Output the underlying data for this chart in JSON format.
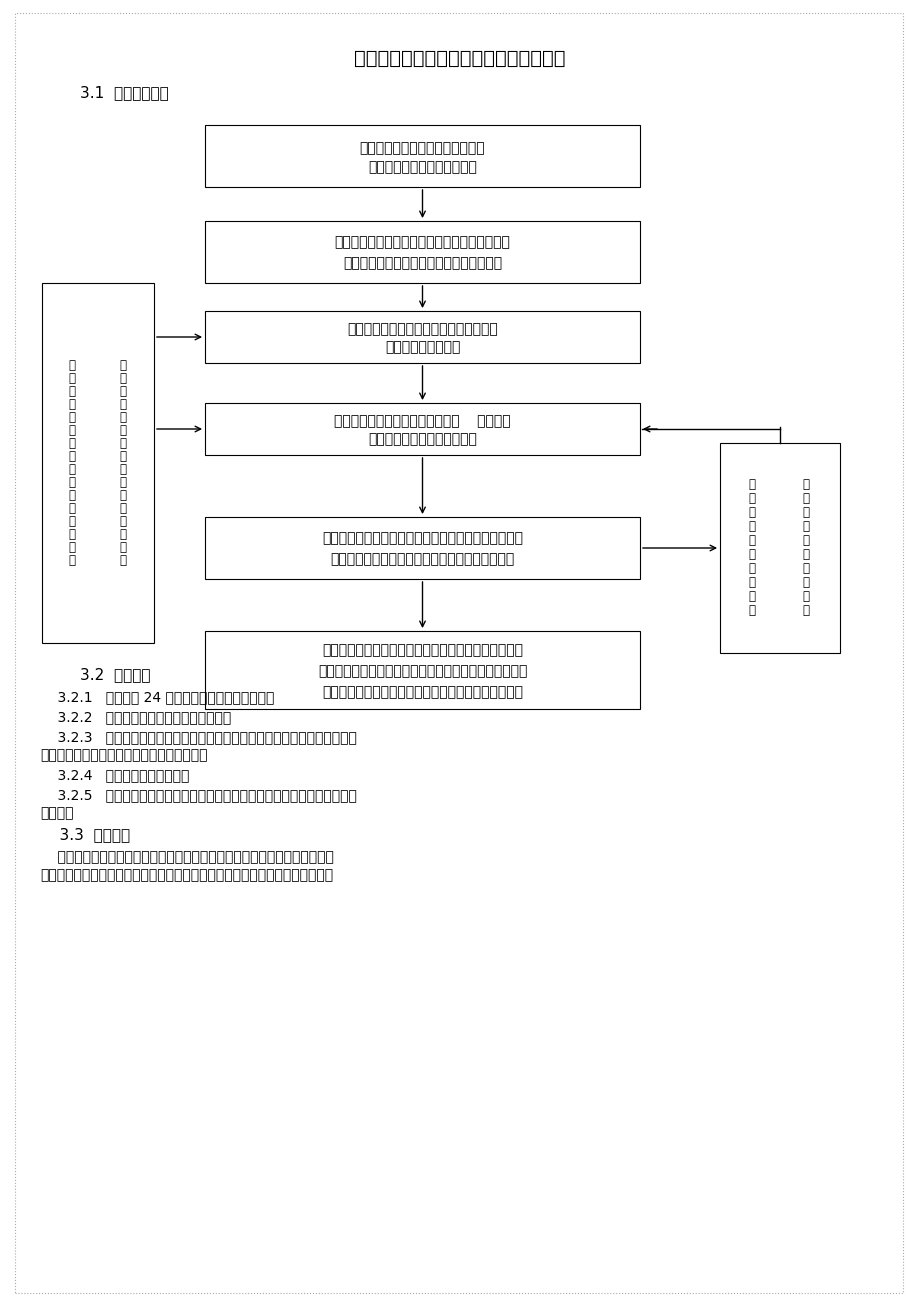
{
  "title": "第三章瓦斯防治监理工作控制要点、目标",
  "section_31": "3.1  超前地质手段",
  "box1_line1": "督促施工单位编制隧道含瓦斯探测",
  "box1_line2": "的超前地质预报的措施于方案",
  "box2_line1": "监理单位审批施工单位上报含瓦斯探测的超前地",
  "box2_line2": "质预报的实施方案，提出可行性建议与方案",
  "box3_line1": "督促施工单位在隧道洞内按规范规定的平",
  "box3_line2": "率定期进行地质探测",
  "box4_line1": "及时记录并掌握第一手原始资料，    编制超前",
  "box4_line2": "地质预报，分析地质预报结果",
  "box5_line1": "监理单位认真审核施工单位上报的超前地质预报结果，",
  "box5_line2": "分析隧道围岩是否稳定及地质预报是否与设计相符",
  "box6_line1": "超前地质预报若与设计不符应及时通知有关单位变更处",
  "box6_line2": "理，若地质预报存在瓦斯、溶洞、突水、突泥等风险时应",
  "box6_line3": "督促施工单位做好应急预案，确保隧道施工与运营安全",
  "left_col1": [
    "监",
    "理",
    "单",
    "位",
    "现",
    "场",
    "进",
    "行",
    "见",
    "证",
    "旁",
    "站",
    "超",
    "前",
    "地",
    "质"
  ],
  "left_col2": [
    "预",
    "报",
    "及",
    "时",
    "收",
    "集",
    "整",
    "理",
    "现",
    "场",
    "原",
    "始",
    "记",
    "录",
    "资",
    "料"
  ],
  "right_col1": [
    "发",
    "现",
    "预",
    "报",
    "实",
    "施",
    "不",
    "规",
    "范",
    "，"
  ],
  "right_col2": [
    "督",
    "促",
    "施",
    "工",
    "单",
    "位",
    "重",
    "新",
    "实",
    "施"
  ],
  "section_32": "3.2  洞口管理",
  "item_321": "    3.2.1   洞口必须 24 小时设置专职安全值班人员。",
  "item_322": "    3.2.2   所有进出洞人员必须在洞口登记。",
  "item_323_1": "    3.2.3   人员进洞前严禁饮酒，进洞时严禁穿化纤衣服，必须带好安全帽，携",
  "item_323_2": "带自救器，禁止携带烟草、手机、点火物品。",
  "item_324": "    3.2.4   建立进出洞登记制度。",
  "item_325_1": "    3.2.5   洞口值班室存放瓦斯浓度检测记录表，及时反映洞内各部位的瓦斯浓",
  "item_325_2": "度情况。",
  "section_33": "    3.3  施工人员",
  "para_33_1": "    所有与本瓦斯隧道施工有关人员，必须经专项安全培训，经培训考试合格后",
  "para_33_2": "方可进行本隧道内各项施工作业，其中，特殊工种操作人员必须满足以下要求："
}
